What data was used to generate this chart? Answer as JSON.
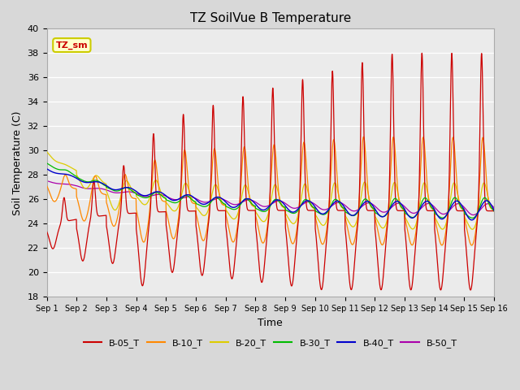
{
  "title": "TZ SoilVue B Temperature",
  "xlabel": "Time",
  "ylabel": "Soil Temperature (C)",
  "ylim": [
    18,
    40
  ],
  "yticks": [
    18,
    20,
    22,
    24,
    26,
    28,
    30,
    32,
    34,
    36,
    38,
    40
  ],
  "xtick_labels": [
    "Sep 1",
    "Sep 2",
    "Sep 3",
    "Sep 4",
    "Sep 5",
    "Sep 6",
    "Sep 7",
    "Sep 8",
    "Sep 9",
    "Sep 10",
    "Sep 11",
    "Sep 12",
    "Sep 13",
    "Sep 14",
    "Sep 15",
    "Sep 16"
  ],
  "annotation_text": "TZ_sm",
  "annotation_color": "#cc0000",
  "annotation_bg": "#ffffcc",
  "annotation_border": "#cccc00",
  "fig_bg_color": "#d8d8d8",
  "plot_bg_color": "#ebebeb",
  "series_colors": {
    "B-05_T": "#cc0000",
    "B-10_T": "#ff8800",
    "B-20_T": "#ddcc00",
    "B-30_T": "#00bb00",
    "B-40_T": "#0000cc",
    "B-50_T": "#aa00aa"
  },
  "legend_entries": [
    "B-05_T",
    "B-10_T",
    "B-20_T",
    "B-30_T",
    "B-40_T",
    "B-50_T"
  ]
}
